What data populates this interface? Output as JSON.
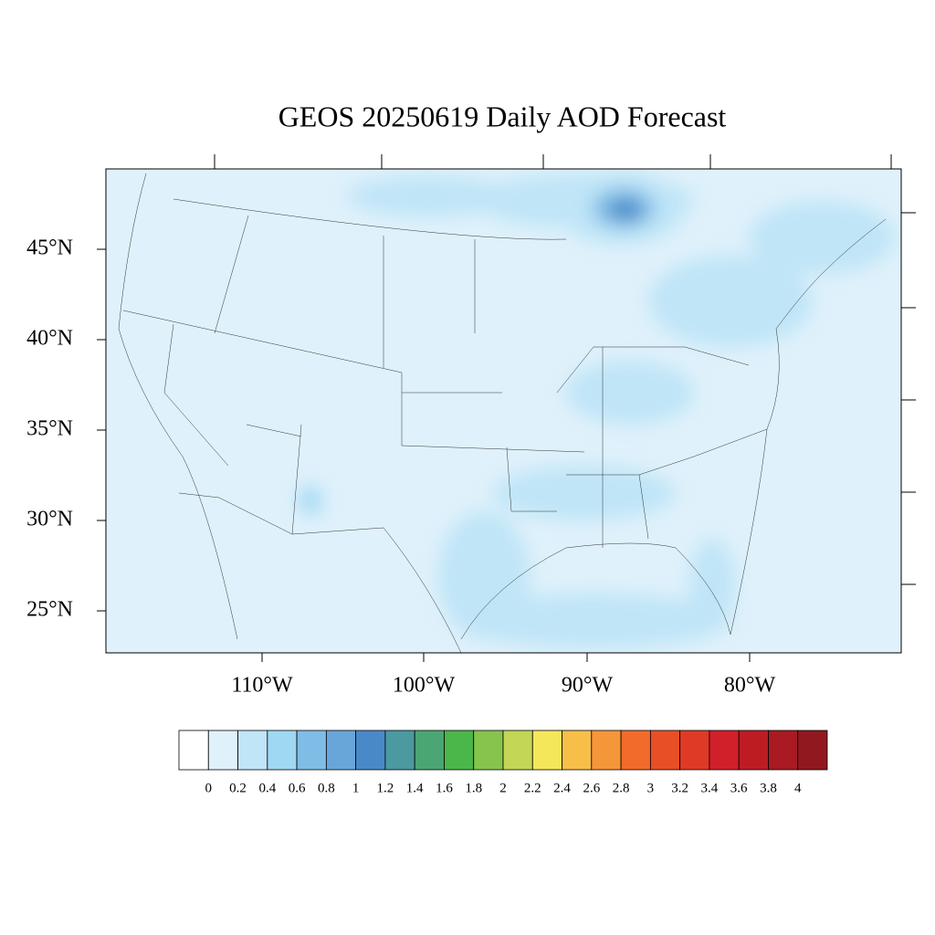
{
  "title": "GEOS 20250619 Daily AOD Forecast",
  "lat_labels": [
    "45°N",
    "40°N",
    "35°N",
    "30°N",
    "25°N"
  ],
  "lon_labels": [
    "110°W",
    "100°W",
    "90°W",
    "80°W"
  ],
  "colorbar": {
    "ticks": [
      0,
      0.2,
      0.4,
      0.6,
      0.8,
      1,
      1.2,
      1.4,
      1.6,
      1.8,
      2,
      2.2,
      2.4,
      2.6,
      2.8,
      3,
      3.2,
      3.4,
      3.6,
      3.8,
      4
    ],
    "colors": [
      "#ffffff",
      "#dff1fb",
      "#bfe5f7",
      "#9fd8f3",
      "#80bde6",
      "#68a6da",
      "#4a89c7",
      "#4a9aa0",
      "#4ba673",
      "#4bb649",
      "#86c44c",
      "#c3d656",
      "#f5e75a",
      "#f7bf48",
      "#f5963a",
      "#f26b2b",
      "#e94f27",
      "#df3a26",
      "#d1202a",
      "#be1c25",
      "#a91a22",
      "#921820"
    ]
  }
}
